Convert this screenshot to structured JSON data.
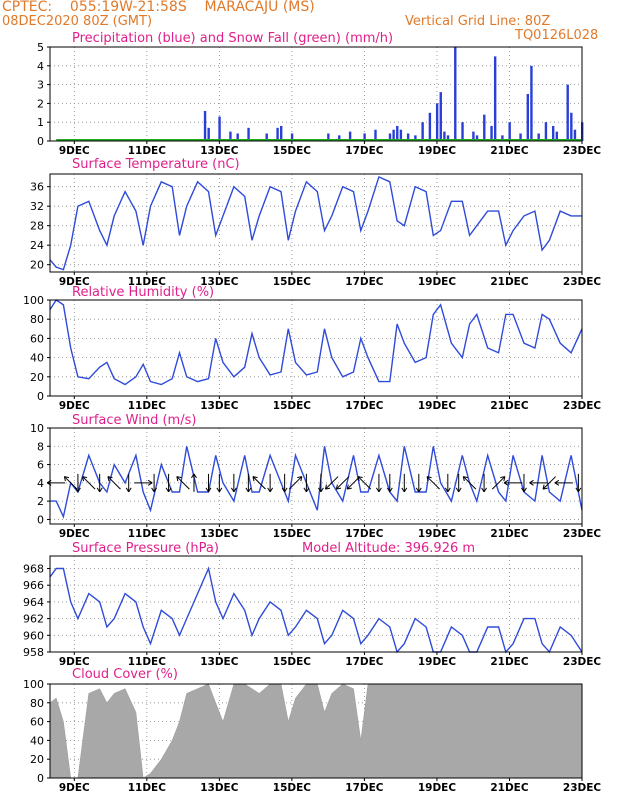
{
  "header": {
    "line1": "CPTEC:    055:19W-21:58S    MARACAJU (MS)",
    "line2": "08DEC2020 80Z (GMT)",
    "grid_note": "Vertical Grid Line: 80Z",
    "code": "TQ0126L028"
  },
  "colors": {
    "header": "#e07a2b",
    "title": "#e0208a",
    "precip": "#2a3fd8",
    "snow": "#22aa22",
    "line": "#2f4bd9",
    "cloud": "#a8a8a8",
    "grid": "#888888"
  },
  "x_ticks": [
    "9DEC",
    "11DEC",
    "13DEC",
    "15DEC",
    "17DEC",
    "19DEC",
    "21DEC",
    "23DEC"
  ],
  "x_tick_days": [
    9,
    11,
    13,
    15,
    17,
    19,
    21,
    23
  ],
  "xlim_days": [
    8.33,
    23.0
  ],
  "chart_data": [
    {
      "type": "bar",
      "title": "Precipitation (blue) and Snow Fall (green) (mm/h)",
      "ylim": [
        0,
        5
      ],
      "yticks": [
        0,
        1,
        2,
        3,
        4,
        5
      ],
      "series": [
        {
          "name": "Precipitation",
          "x": [
            12.6,
            12.7,
            13.0,
            13.3,
            13.5,
            13.8,
            14.3,
            14.6,
            14.7,
            15.0,
            16.0,
            16.3,
            16.6,
            17.0,
            17.3,
            17.7,
            17.8,
            17.9,
            18.0,
            18.2,
            18.4,
            18.6,
            18.8,
            19.0,
            19.1,
            19.2,
            19.3,
            19.5,
            19.7,
            20.0,
            20.1,
            20.3,
            20.5,
            20.6,
            20.8,
            21.0,
            21.3,
            21.5,
            21.6,
            21.8,
            22.0,
            22.2,
            22.3,
            22.6,
            22.7,
            22.8,
            23.0
          ],
          "values": [
            1.6,
            0.7,
            1.3,
            0.5,
            0.4,
            0.7,
            0.4,
            0.7,
            0.8,
            0.4,
            0.4,
            0.3,
            0.5,
            0.4,
            0.6,
            0.4,
            0.6,
            0.8,
            0.6,
            0.4,
            0.3,
            1.0,
            1.5,
            2.0,
            2.6,
            0.5,
            0.3,
            5.0,
            1.0,
            0.5,
            0.3,
            1.4,
            0.8,
            4.5,
            0.3,
            1.0,
            0.4,
            2.5,
            4.0,
            0.4,
            1.0,
            0.8,
            0.5,
            3.0,
            1.5,
            0.6,
            1.0
          ]
        },
        {
          "name": "Snow Fall",
          "x": [
            8.5,
            23.0
          ],
          "values": [
            0,
            0
          ]
        }
      ]
    },
    {
      "type": "line",
      "title": "Surface Temperature (nC)",
      "ylim": [
        18.5,
        38.6
      ],
      "yticks": [
        20,
        24,
        28,
        32,
        36
      ],
      "series": [
        {
          "name": "Temperature",
          "x": [
            8.33,
            8.5,
            8.7,
            8.9,
            9.1,
            9.4,
            9.7,
            9.9,
            10.1,
            10.4,
            10.7,
            10.9,
            11.1,
            11.4,
            11.7,
            11.9,
            12.1,
            12.4,
            12.7,
            12.9,
            13.1,
            13.4,
            13.7,
            13.9,
            14.1,
            14.4,
            14.7,
            14.9,
            15.1,
            15.4,
            15.7,
            15.9,
            16.1,
            16.4,
            16.7,
            16.9,
            17.1,
            17.4,
            17.7,
            17.9,
            18.1,
            18.4,
            18.7,
            18.9,
            19.1,
            19.4,
            19.7,
            19.9,
            20.1,
            20.4,
            20.7,
            20.9,
            21.1,
            21.4,
            21.7,
            21.9,
            22.1,
            22.4,
            22.7,
            23.0
          ],
          "values": [
            21,
            19.5,
            19,
            24,
            32,
            33,
            27,
            24,
            30,
            35,
            31,
            24,
            32,
            37,
            36,
            26,
            32,
            37,
            35,
            26,
            30,
            36,
            34,
            25,
            30,
            36,
            35,
            25,
            31,
            37,
            35,
            27,
            30,
            36,
            35,
            27,
            31,
            38,
            37,
            29,
            28,
            36,
            35,
            26,
            27,
            33,
            33,
            26,
            28,
            31,
            31,
            24,
            27,
            30,
            31,
            23,
            25,
            31,
            30,
            30
          ]
        }
      ]
    },
    {
      "type": "line",
      "title": "Relative Humidity (%)",
      "ylim": [
        0,
        100
      ],
      "yticks": [
        0,
        20,
        40,
        60,
        80,
        100
      ],
      "series": [
        {
          "name": "Relative Humidity",
          "x": [
            8.33,
            8.5,
            8.7,
            8.9,
            9.1,
            9.4,
            9.7,
            9.9,
            10.1,
            10.4,
            10.7,
            10.9,
            11.1,
            11.4,
            11.7,
            11.9,
            12.1,
            12.4,
            12.7,
            12.9,
            13.1,
            13.4,
            13.7,
            13.9,
            14.1,
            14.4,
            14.7,
            14.9,
            15.1,
            15.4,
            15.7,
            15.9,
            16.1,
            16.4,
            16.7,
            16.9,
            17.1,
            17.4,
            17.7,
            17.9,
            18.1,
            18.4,
            18.7,
            18.9,
            19.1,
            19.4,
            19.7,
            19.9,
            20.1,
            20.4,
            20.7,
            20.9,
            21.1,
            21.4,
            21.7,
            21.9,
            22.1,
            22.4,
            22.7,
            23.0
          ],
          "values": [
            90,
            100,
            95,
            50,
            20,
            18,
            30,
            35,
            18,
            12,
            20,
            33,
            15,
            12,
            18,
            45,
            20,
            15,
            18,
            60,
            35,
            20,
            30,
            65,
            40,
            22,
            25,
            70,
            35,
            22,
            25,
            70,
            40,
            20,
            25,
            60,
            40,
            15,
            15,
            75,
            55,
            35,
            40,
            85,
            95,
            55,
            40,
            75,
            85,
            50,
            45,
            85,
            85,
            55,
            50,
            85,
            80,
            55,
            45,
            70
          ]
        }
      ]
    },
    {
      "type": "line",
      "title": "Surface Wind (m/s)",
      "ylim": [
        -0.5,
        10
      ],
      "yticks": [
        0,
        2,
        4,
        6,
        8,
        10
      ],
      "series": [
        {
          "name": "Surface Wind",
          "x": [
            8.33,
            8.5,
            8.7,
            8.9,
            9.1,
            9.4,
            9.7,
            9.9,
            10.1,
            10.4,
            10.7,
            10.9,
            11.1,
            11.4,
            11.7,
            11.9,
            12.1,
            12.4,
            12.7,
            12.9,
            13.1,
            13.4,
            13.7,
            13.9,
            14.1,
            14.4,
            14.7,
            14.9,
            15.1,
            15.4,
            15.7,
            15.9,
            16.1,
            16.4,
            16.7,
            16.9,
            17.1,
            17.4,
            17.7,
            17.9,
            18.1,
            18.4,
            18.7,
            18.9,
            19.1,
            19.4,
            19.7,
            19.9,
            20.1,
            20.4,
            20.7,
            20.9,
            21.1,
            21.4,
            21.7,
            21.9,
            22.1,
            22.4,
            22.7,
            23.0
          ],
          "values": [
            2,
            2,
            0.3,
            4,
            3,
            7,
            4,
            3,
            6,
            4,
            7,
            3,
            1,
            6,
            3,
            3,
            8,
            3,
            3,
            7,
            4,
            2,
            7,
            3,
            3,
            7,
            4,
            2,
            7,
            4,
            1,
            8,
            4,
            2,
            7,
            3,
            3,
            7,
            3,
            2,
            8,
            3,
            3,
            8,
            4,
            2,
            7,
            4,
            2,
            7,
            3,
            2,
            7,
            3,
            2,
            7,
            3,
            2,
            7,
            1
          ]
        }
      ],
      "arrows": {
        "x": [
          8.5,
          8.9,
          9.1,
          9.4,
          9.7,
          10.1,
          10.5,
          10.9,
          11.2,
          11.6,
          12.0,
          12.3,
          12.7,
          13.0,
          13.4,
          13.8,
          14.1,
          14.4,
          14.8,
          15.1,
          15.4,
          15.8,
          16.1,
          16.4,
          16.7,
          17.0,
          17.4,
          17.7,
          18.1,
          18.5,
          18.9,
          19.3,
          19.6,
          19.9,
          20.3,
          20.7,
          21.1,
          21.4,
          21.8,
          22.1,
          22.5,
          22.9
        ],
        "dirs": [
          "W",
          "NW",
          "S",
          "NW",
          "S",
          "NW",
          "S",
          "E",
          "S",
          "S",
          "NW",
          "N",
          "S",
          "S",
          "S",
          "S",
          "NW",
          "S",
          "S",
          "NE",
          "S",
          "S",
          "SW",
          "SW",
          "SW",
          "NW",
          "S",
          "S",
          "S",
          "S",
          "NW",
          "S",
          "S",
          "NW",
          "S",
          "NE",
          "W",
          "S",
          "W",
          "SW",
          "W",
          "S"
        ]
      }
    },
    {
      "type": "line",
      "title": "Surface Pressure (hPa)",
      "annotation": "Model Altitude: 396.926 m",
      "ylim": [
        958,
        969.5
      ],
      "yticks": [
        958,
        960,
        962,
        964,
        966,
        968
      ],
      "series": [
        {
          "name": "Surface Pressure",
          "x": [
            8.33,
            8.5,
            8.7,
            8.9,
            9.1,
            9.4,
            9.7,
            9.9,
            10.1,
            10.4,
            10.7,
            10.9,
            11.1,
            11.4,
            11.7,
            11.9,
            12.1,
            12.4,
            12.7,
            12.9,
            13.1,
            13.4,
            13.7,
            13.9,
            14.1,
            14.4,
            14.7,
            14.9,
            15.1,
            15.4,
            15.7,
            15.9,
            16.1,
            16.4,
            16.7,
            16.9,
            17.1,
            17.4,
            17.7,
            17.9,
            18.1,
            18.4,
            18.7,
            18.9,
            19.1,
            19.4,
            19.7,
            19.9,
            20.1,
            20.4,
            20.7,
            20.9,
            21.1,
            21.4,
            21.7,
            21.9,
            22.1,
            22.4,
            22.7,
            23.0
          ],
          "values": [
            967,
            968,
            968,
            964,
            962,
            965,
            964,
            961,
            962,
            965,
            964,
            961,
            959,
            963,
            962,
            960,
            962,
            965,
            968,
            964,
            962,
            965,
            963,
            960,
            962,
            964,
            963,
            960,
            961,
            963,
            962,
            959,
            960,
            963,
            962,
            959,
            960,
            962,
            961,
            958,
            959,
            962,
            961,
            958,
            958,
            961,
            960,
            958,
            958,
            961,
            961,
            958,
            959,
            962,
            962,
            959,
            958,
            961,
            960,
            958
          ]
        }
      ]
    },
    {
      "type": "area",
      "title": "Cloud Cover (%)",
      "ylim": [
        0,
        100
      ],
      "yticks": [
        0,
        20,
        40,
        60,
        80,
        100
      ],
      "series": [
        {
          "name": "Cloud Cover",
          "x": [
            8.33,
            8.5,
            8.7,
            8.9,
            9.1,
            9.4,
            9.7,
            9.9,
            10.1,
            10.4,
            10.7,
            10.9,
            11.1,
            11.4,
            11.7,
            11.9,
            12.1,
            12.4,
            12.7,
            12.9,
            13.1,
            13.4,
            13.7,
            13.9,
            14.1,
            14.4,
            14.7,
            14.9,
            15.1,
            15.4,
            15.7,
            15.9,
            16.1,
            16.4,
            16.7,
            16.9,
            17.1,
            17.4,
            17.7,
            17.9,
            18.1,
            18.4,
            18.7,
            18.9,
            19.1,
            19.4,
            19.7,
            19.9,
            20.1,
            20.4,
            20.7,
            20.9,
            21.1,
            21.4,
            21.7,
            21.9,
            22.1,
            22.4,
            22.7,
            23.0
          ],
          "values": [
            80,
            85,
            60,
            0,
            0,
            90,
            95,
            80,
            90,
            95,
            70,
            0,
            5,
            20,
            40,
            60,
            90,
            95,
            100,
            80,
            60,
            100,
            100,
            95,
            90,
            100,
            100,
            60,
            85,
            100,
            100,
            70,
            90,
            100,
            95,
            40,
            100,
            100,
            100,
            100,
            100,
            100,
            100,
            100,
            100,
            100,
            100,
            100,
            100,
            100,
            100,
            100,
            100,
            100,
            100,
            100,
            100,
            100,
            100,
            100
          ]
        }
      ]
    }
  ]
}
